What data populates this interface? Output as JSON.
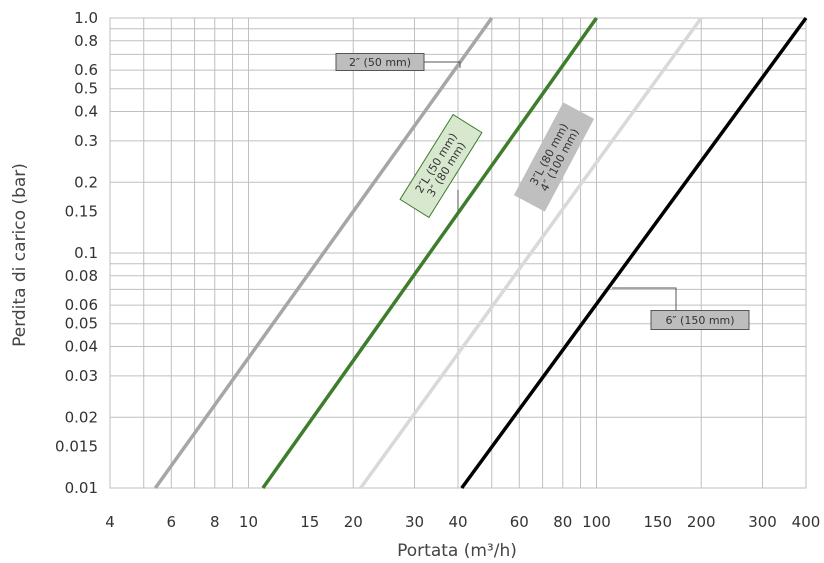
{
  "chart_data": {
    "type": "line",
    "x_scale": "log",
    "y_scale": "log",
    "xlim": [
      4,
      400
    ],
    "ylim": [
      0.01,
      1.0
    ],
    "xlabel": "Portata (m³/h)",
    "ylabel": "Perdita di carico (bar)",
    "x_ticks": [
      "4",
      "6",
      "8",
      "10",
      "15",
      "20",
      "30",
      "40",
      "60",
      "80",
      "100",
      "150",
      "200",
      "300",
      "400"
    ],
    "y_ticks": [
      "0.01",
      "0.015",
      "0.02",
      "0.03",
      "0.04",
      "0.05",
      "0.06",
      "0.08",
      "0.1",
      "0.15",
      "0.2",
      "0.3",
      "0.4",
      "0.5",
      "0.6",
      "0.8",
      "1.0"
    ],
    "grid": true,
    "series": [
      {
        "label": "2″ (50 mm)",
        "color": "#a6a6a6",
        "x": [
          5.4,
          50
        ],
        "y": [
          0.01,
          1.0
        ]
      },
      {
        "label": "2″L (50 mm)\n3″ (80 mm)",
        "color": "#3e7d2c",
        "x": [
          11,
          100
        ],
        "y": [
          0.01,
          1.0
        ]
      },
      {
        "label": "3″L (80 mm)\n4″ (100 mm)",
        "color": "#d9d9d9",
        "x": [
          21,
          200
        ],
        "y": [
          0.01,
          1.0
        ]
      },
      {
        "label": "6″ (150 mm)",
        "color": "#000000",
        "x": [
          41,
          400
        ],
        "y": [
          0.01,
          1.0
        ]
      }
    ]
  }
}
